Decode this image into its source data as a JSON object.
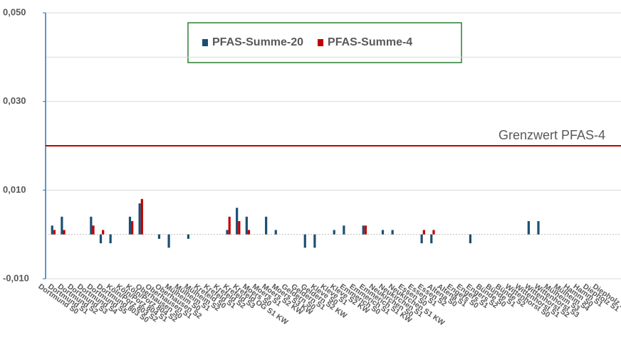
{
  "chart_data": {
    "type": "bar",
    "categories": [
      "Dortmund S0",
      "Dortmund S1",
      "Dortmund S2",
      "Dortmund S3",
      "Dortmund S4",
      "Dortmund S5",
      "Dortmund 803 S0",
      "Köln/Porz 803 S2",
      "Köln/Porz 804 S1",
      "Köln/Porz 804 S2",
      "Oberhausen S0",
      "Oberhausen S1",
      "Oberhausen S2",
      "Mülheim S0",
      "Mülheim S1",
      "Mülheim S2",
      "Krefeld S0",
      "Krefeld S1",
      "Krefeld S2",
      "Krefeld S3",
      "Krefeld OG S1 KW",
      "Moers S0",
      "Moers S1",
      "Moers S2 KW",
      "Moers S3 KW",
      "Geldern S0",
      "Geldern S1",
      "Geldern S2 KW",
      "Kleve S0",
      "Kleve S1",
      "Kleve S2 KW",
      "Emmerich S0",
      "Emmerich S1",
      "Emmerich S1 KW",
      "Neukirchen S0",
      "Neukirchen S1",
      "Neukirchen S1 KW",
      "Essen S0",
      "Essen S1",
      "Essen S2",
      "Altena S0",
      "Altena S1",
      "Engers S0",
      "Engers S1",
      "Engers S2",
      "Bünde S0",
      "Bünde S1",
      "Bünde S2",
      "Wittenhorst S0",
      "Wittenhorst S1",
      "Wittenhorst S2",
      "Wittenhorst S3",
      "Mülheim S3",
      "Mülheim S4",
      "Hamm S0",
      "Hamm S1",
      "Diepholz S1",
      "Diepholz S0"
    ],
    "series": [
      {
        "name": "PFAS-Summe-20",
        "color": "#1b4f72",
        "values": [
          0.002,
          0.004,
          0,
          0,
          0.004,
          -0.002,
          -0.002,
          0,
          0.004,
          0.007,
          0,
          -0.001,
          -0.003,
          0,
          -0.001,
          0,
          0,
          0,
          0.001,
          0.006,
          0.004,
          0,
          0.004,
          0.001,
          0,
          0,
          -0.003,
          -0.003,
          0,
          0.001,
          0.002,
          0,
          0.002,
          0,
          0.001,
          0.001,
          0,
          0,
          -0.002,
          -0.002,
          0,
          0,
          0,
          -0.002,
          0,
          0,
          0,
          0,
          0,
          0.003,
          0.003,
          0,
          0,
          0,
          0,
          0,
          0,
          0
        ]
      },
      {
        "name": "PFAS-Summe-4",
        "color": "#c00000",
        "values": [
          0.001,
          0.001,
          0,
          0,
          0.002,
          0.001,
          0,
          0,
          0.003,
          0.008,
          0,
          0,
          0,
          0,
          0,
          0,
          0,
          0,
          0.004,
          0.003,
          0.001,
          0,
          0,
          0,
          0,
          0,
          0,
          0,
          0,
          0,
          0,
          0,
          0.002,
          0,
          0,
          0,
          0,
          0,
          0.001,
          0.001,
          0,
          0,
          0,
          0,
          0,
          0,
          0,
          0,
          0,
          0,
          0,
          0,
          0,
          0,
          0,
          0,
          0,
          0
        ]
      }
    ],
    "ylim": [
      -0.01,
      0.05
    ],
    "yticks": [
      {
        "value": 0.05,
        "label": "0,050"
      },
      {
        "value": 0.03,
        "label": "0,030"
      },
      {
        "value": 0.01,
        "label": "0,010"
      },
      {
        "value": -0.01,
        "label": "-0,010"
      }
    ],
    "grid_lines": [
      0.05,
      0.04,
      0.03,
      0.02,
      0.01,
      -0.01
    ],
    "threshold": {
      "value": 0.02,
      "label": "Grenzwert PFAS-4",
      "color": "#c00000"
    },
    "legend": "top"
  }
}
